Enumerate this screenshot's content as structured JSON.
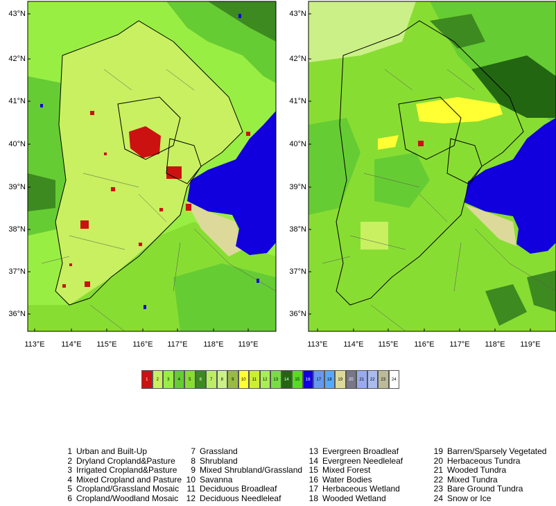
{
  "map": {
    "lat_labels": [
      "43°N",
      "42°N",
      "41°N",
      "40°N",
      "39°N",
      "38°N",
      "37°N",
      "36°N"
    ],
    "lon_labels": [
      "113°E",
      "114°E",
      "115°E",
      "116°E",
      "117°E",
      "118°E",
      "119°E"
    ]
  },
  "legend": {
    "codes": [
      "1",
      "2",
      "3",
      "4",
      "5",
      "6",
      "7",
      "8",
      "9",
      "10",
      "11",
      "12",
      "13",
      "14",
      "15",
      "16",
      "17",
      "18",
      "19",
      "20",
      "21",
      "22",
      "23",
      "24"
    ],
    "colors": [
      "#cc1111",
      "#c8f060",
      "#99ee44",
      "#66cc33",
      "#88dd33",
      "#3d8a20",
      "#bbee66",
      "#ccf088",
      "#99bb44",
      "#ffff33",
      "#ccee33",
      "#aaee55",
      "#77dd44",
      "#226611",
      "#55dd22",
      "#1100dd",
      "#6699ee",
      "#55aaff",
      "#ddd99a",
      "#777788",
      "#99aaee",
      "#aabbee",
      "#bbbb99",
      "#ffffff"
    ],
    "classes": [
      {
        "num": "1",
        "name": "Urban and Built-Up"
      },
      {
        "num": "2",
        "name": "Dryland Cropland&Pasture"
      },
      {
        "num": "3",
        "name": "Irrigated Cropland&Pasture"
      },
      {
        "num": "4",
        "name": "Mixed Cropland and Pasture"
      },
      {
        "num": "5",
        "name": "Cropland/Grassland Mosaic"
      },
      {
        "num": "6",
        "name": "Cropland/Woodland Mosaic"
      },
      {
        "num": "7",
        "name": "Grassland"
      },
      {
        "num": "8",
        "name": "Shrubland"
      },
      {
        "num": "9",
        "name": "Mixed Shrubland/Grassland"
      },
      {
        "num": "10",
        "name": "Savanna"
      },
      {
        "num": "11",
        "name": "Deciduous Broadleaf"
      },
      {
        "num": "12",
        "name": "Deciduous Needleleaf"
      },
      {
        "num": "13",
        "name": "Evergreen Broadleaf"
      },
      {
        "num": "14",
        "name": "Evergreen Needleleaf"
      },
      {
        "num": "15",
        "name": "Mixed Forest"
      },
      {
        "num": "16",
        "name": "Water Bodies"
      },
      {
        "num": "17",
        "name": "Herbaceous Wetland"
      },
      {
        "num": "18",
        "name": "Wooded Wetland"
      },
      {
        "num": "19",
        "name": "Barren/Sparsely Vegetated"
      },
      {
        "num": "20",
        "name": "Herbaceous Tundra"
      },
      {
        "num": "21",
        "name": "Wooded Tundra"
      },
      {
        "num": "22",
        "name": "Mixed Tundra"
      },
      {
        "num": "23",
        "name": "Bare Ground Tundra"
      },
      {
        "num": "24",
        "name": "Snow or Ice"
      }
    ]
  }
}
